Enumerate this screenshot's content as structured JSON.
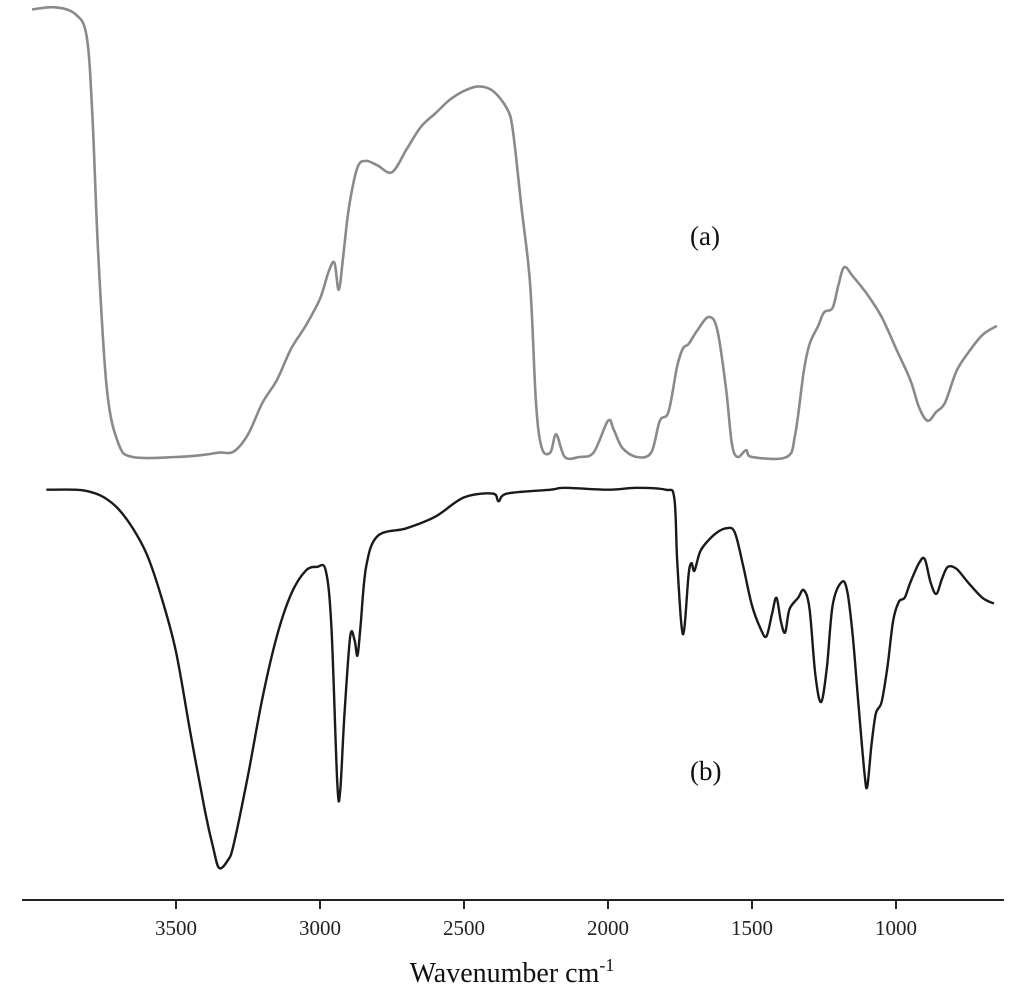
{
  "chart_data": {
    "type": "line",
    "title": "",
    "xlabel": "Wavenumber cm",
    "xlabel_superscript": "-1",
    "xlim": [
      4000,
      650
    ],
    "x_reversed": true,
    "x_ticks": [
      3500,
      3000,
      2500,
      2000,
      1500,
      1000
    ],
    "y_axis_shown": false,
    "grid": false,
    "series": [
      {
        "label": "(a)",
        "color": "#8a8a8a",
        "transmittance_relative": [
          [
            4000,
            0.99
          ],
          [
            3920,
            0.995
          ],
          [
            3850,
            0.98
          ],
          [
            3810,
            0.93
          ],
          [
            3790,
            0.75
          ],
          [
            3770,
            0.45
          ],
          [
            3740,
            0.15
          ],
          [
            3700,
            0.03
          ],
          [
            3650,
            0.0
          ],
          [
            3500,
            0.0
          ],
          [
            3400,
            0.005
          ],
          [
            3350,
            0.01
          ],
          [
            3300,
            0.012
          ],
          [
            3250,
            0.05
          ],
          [
            3200,
            0.12
          ],
          [
            3150,
            0.17
          ],
          [
            3100,
            0.24
          ],
          [
            3050,
            0.29
          ],
          [
            3000,
            0.35
          ],
          [
            2970,
            0.41
          ],
          [
            2950,
            0.43
          ],
          [
            2935,
            0.37
          ],
          [
            2920,
            0.44
          ],
          [
            2900,
            0.55
          ],
          [
            2870,
            0.64
          ],
          [
            2840,
            0.655
          ],
          [
            2800,
            0.645
          ],
          [
            2750,
            0.63
          ],
          [
            2700,
            0.68
          ],
          [
            2650,
            0.73
          ],
          [
            2600,
            0.76
          ],
          [
            2550,
            0.79
          ],
          [
            2500,
            0.81
          ],
          [
            2450,
            0.82
          ],
          [
            2400,
            0.81
          ],
          [
            2350,
            0.77
          ],
          [
            2330,
            0.72
          ],
          [
            2300,
            0.55
          ],
          [
            2270,
            0.38
          ],
          [
            2250,
            0.12
          ],
          [
            2230,
            0.02
          ],
          [
            2200,
            0.01
          ],
          [
            2180,
            0.05
          ],
          [
            2150,
            0.0
          ],
          [
            2100,
            0.0
          ],
          [
            2050,
            0.01
          ],
          [
            2000,
            0.08
          ],
          [
            1980,
            0.06
          ],
          [
            1950,
            0.02
          ],
          [
            1900,
            0.0
          ],
          [
            1850,
            0.01
          ],
          [
            1820,
            0.08
          ],
          [
            1790,
            0.1
          ],
          [
            1760,
            0.2
          ],
          [
            1740,
            0.24
          ],
          [
            1720,
            0.25
          ],
          [
            1690,
            0.28
          ],
          [
            1650,
            0.31
          ],
          [
            1620,
            0.28
          ],
          [
            1590,
            0.15
          ],
          [
            1570,
            0.03
          ],
          [
            1550,
            0.0
          ],
          [
            1520,
            0.015
          ],
          [
            1500,
            0.0
          ],
          [
            1380,
            0.0
          ],
          [
            1350,
            0.05
          ],
          [
            1320,
            0.19
          ],
          [
            1300,
            0.25
          ],
          [
            1270,
            0.29
          ],
          [
            1250,
            0.32
          ],
          [
            1220,
            0.33
          ],
          [
            1200,
            0.38
          ],
          [
            1180,
            0.42
          ],
          [
            1150,
            0.4
          ],
          [
            1100,
            0.36
          ],
          [
            1050,
            0.31
          ],
          [
            1000,
            0.24
          ],
          [
            950,
            0.17
          ],
          [
            920,
            0.11
          ],
          [
            890,
            0.08
          ],
          [
            860,
            0.1
          ],
          [
            830,
            0.12
          ],
          [
            790,
            0.19
          ],
          [
            750,
            0.23
          ],
          [
            700,
            0.27
          ],
          [
            650,
            0.29
          ]
        ]
      },
      {
        "label": "(b)",
        "color": "#1a1a1a",
        "transmittance_relative": [
          [
            3950,
            0.98
          ],
          [
            3850,
            0.98
          ],
          [
            3800,
            0.975
          ],
          [
            3750,
            0.96
          ],
          [
            3700,
            0.93
          ],
          [
            3650,
            0.88
          ],
          [
            3600,
            0.81
          ],
          [
            3550,
            0.7
          ],
          [
            3500,
            0.56
          ],
          [
            3450,
            0.35
          ],
          [
            3400,
            0.15
          ],
          [
            3370,
            0.05
          ],
          [
            3350,
            0.0
          ],
          [
            3320,
            0.02
          ],
          [
            3300,
            0.06
          ],
          [
            3250,
            0.24
          ],
          [
            3200,
            0.44
          ],
          [
            3150,
            0.6
          ],
          [
            3100,
            0.71
          ],
          [
            3050,
            0.77
          ],
          [
            3010,
            0.78
          ],
          [
            2980,
            0.77
          ],
          [
            2960,
            0.62
          ],
          [
            2940,
            0.22
          ],
          [
            2930,
            0.2
          ],
          [
            2915,
            0.4
          ],
          [
            2895,
            0.6
          ],
          [
            2880,
            0.59
          ],
          [
            2870,
            0.55
          ],
          [
            2860,
            0.62
          ],
          [
            2840,
            0.78
          ],
          [
            2800,
            0.86
          ],
          [
            2700,
            0.88
          ],
          [
            2600,
            0.91
          ],
          [
            2500,
            0.96
          ],
          [
            2400,
            0.97
          ],
          [
            2380,
            0.95
          ],
          [
            2350,
            0.97
          ],
          [
            2200,
            0.98
          ],
          [
            2150,
            0.985
          ],
          [
            2000,
            0.98
          ],
          [
            1900,
            0.985
          ],
          [
            1800,
            0.98
          ],
          [
            1770,
            0.96
          ],
          [
            1760,
            0.8
          ],
          [
            1745,
            0.63
          ],
          [
            1735,
            0.62
          ],
          [
            1720,
            0.76
          ],
          [
            1710,
            0.79
          ],
          [
            1700,
            0.77
          ],
          [
            1680,
            0.82
          ],
          [
            1650,
            0.85
          ],
          [
            1620,
            0.87
          ],
          [
            1590,
            0.88
          ],
          [
            1560,
            0.87
          ],
          [
            1530,
            0.78
          ],
          [
            1500,
            0.68
          ],
          [
            1470,
            0.62
          ],
          [
            1450,
            0.6
          ],
          [
            1430,
            0.66
          ],
          [
            1415,
            0.7
          ],
          [
            1400,
            0.64
          ],
          [
            1385,
            0.61
          ],
          [
            1370,
            0.67
          ],
          [
            1340,
            0.7
          ],
          [
            1320,
            0.72
          ],
          [
            1300,
            0.67
          ],
          [
            1280,
            0.5
          ],
          [
            1260,
            0.43
          ],
          [
            1240,
            0.52
          ],
          [
            1220,
            0.68
          ],
          [
            1190,
            0.74
          ],
          [
            1170,
            0.72
          ],
          [
            1150,
            0.6
          ],
          [
            1130,
            0.42
          ],
          [
            1110,
            0.25
          ],
          [
            1100,
            0.21
          ],
          [
            1085,
            0.32
          ],
          [
            1070,
            0.4
          ],
          [
            1050,
            0.43
          ],
          [
            1030,
            0.52
          ],
          [
            1010,
            0.64
          ],
          [
            990,
            0.69
          ],
          [
            970,
            0.7
          ],
          [
            950,
            0.74
          ],
          [
            920,
            0.79
          ],
          [
            900,
            0.8
          ],
          [
            880,
            0.74
          ],
          [
            860,
            0.71
          ],
          [
            840,
            0.75
          ],
          [
            820,
            0.78
          ],
          [
            790,
            0.775
          ],
          [
            750,
            0.74
          ],
          [
            700,
            0.7
          ],
          [
            660,
            0.685
          ]
        ]
      }
    ],
    "annotations": [
      "(a)",
      "(b)"
    ]
  },
  "colors": {
    "background": "#ffffff",
    "axis": "#222222",
    "series_a": "#8a8a8a",
    "series_b": "#1a1a1a"
  }
}
